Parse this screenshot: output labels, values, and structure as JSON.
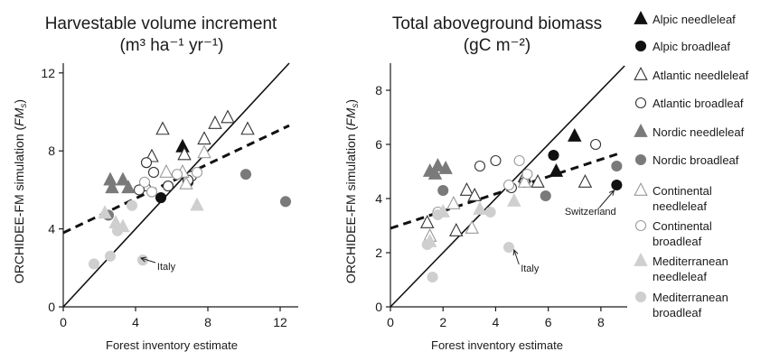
{
  "chart_data": [
    {
      "type": "scatter",
      "title": "Harvestable volume increment",
      "subtitle": "(m³ ha⁻¹ yr⁻¹)",
      "xlabel": "Forest inventory estimate",
      "ylabel_main": "ORCHIDEE-FM simulation (",
      "ylabel_sym": "FM",
      "ylabel_sub": "s",
      "ylabel_end": ")",
      "xlim": [
        0,
        13
      ],
      "ylim": [
        0,
        12.5
      ],
      "x_ticks": [
        "0",
        "4",
        "8",
        "12"
      ],
      "y_ticks": [
        "0",
        "4",
        "8",
        "12"
      ],
      "x_tick_values": [
        0,
        4,
        8,
        12
      ],
      "y_tick_values": [
        0,
        4,
        8,
        12
      ],
      "one_to_one_line": {
        "x": [
          0,
          12.5
        ],
        "y": [
          0,
          12.5
        ]
      },
      "regression_line": {
        "x": [
          0,
          12.5
        ],
        "y": [
          3.8,
          9.3
        ]
      },
      "annotations": [
        {
          "text": "Italy",
          "x": 5.7,
          "y": 1.9,
          "arrow_to": [
            4.3,
            2.5
          ]
        }
      ],
      "series": [
        {
          "name": "Alpic needleleaf",
          "points": [
            [
              6.6,
              8.2
            ]
          ]
        },
        {
          "name": "Alpic broadleaf",
          "points": [
            [
              5.4,
              5.6
            ],
            [
              6.9,
              6.4
            ]
          ]
        },
        {
          "name": "Atlantic needleleaf",
          "points": [
            [
              5.5,
              9.1
            ],
            [
              6.7,
              7.8
            ],
            [
              7.8,
              8.6
            ],
            [
              8.4,
              9.4
            ],
            [
              9.1,
              9.7
            ],
            [
              10.2,
              9.1
            ],
            [
              4.9,
              7.7
            ],
            [
              4.6,
              6.2
            ]
          ]
        },
        {
          "name": "Atlantic broadleaf",
          "points": [
            [
              4.2,
              6.0
            ],
            [
              4.6,
              7.4
            ],
            [
              5.0,
              6.9
            ],
            [
              5.8,
              6.2
            ],
            [
              7.1,
              6.7
            ],
            [
              6.9,
              6.5
            ]
          ]
        },
        {
          "name": "Nordic needleleaf",
          "points": [
            [
              2.6,
              6.5
            ],
            [
              2.7,
              6.1
            ],
            [
              3.3,
              6.5
            ],
            [
              3.6,
              6.1
            ]
          ]
        },
        {
          "name": "Nordic broadleaf",
          "points": [
            [
              2.5,
              4.7
            ],
            [
              10.1,
              6.8
            ],
            [
              12.3,
              5.4
            ]
          ]
        },
        {
          "name": "Continental needleleaf",
          "points": [
            [
              5.7,
              6.9
            ],
            [
              6.6,
              6.9
            ],
            [
              7.8,
              7.9
            ],
            [
              6.8,
              6.3
            ]
          ]
        },
        {
          "name": "Continental broadleaf",
          "points": [
            [
              4.5,
              6.4
            ],
            [
              4.9,
              5.9
            ],
            [
              6.3,
              6.8
            ],
            [
              7.4,
              6.9
            ]
          ]
        },
        {
          "name": "Mediterranean needleleaf",
          "points": [
            [
              2.9,
              4.3
            ],
            [
              3.3,
              4.1
            ],
            [
              7.4,
              5.2
            ],
            [
              2.3,
              4.8
            ]
          ]
        },
        {
          "name": "Mediterranean broadleaf",
          "points": [
            [
              1.7,
              2.2
            ],
            [
              2.6,
              2.6
            ],
            [
              4.4,
              2.4
            ],
            [
              3.0,
              3.9
            ],
            [
              3.8,
              5.2
            ]
          ]
        }
      ]
    },
    {
      "type": "scatter",
      "title": "Total aboveground biomass",
      "subtitle": "(gC m⁻²)",
      "xlabel": "Forest inventory estimate",
      "ylabel_main": "ORCHIDEE-FM simulation (",
      "ylabel_sym": "FM",
      "ylabel_sub": "s",
      "ylabel_end": ")",
      "xlim": [
        0,
        9
      ],
      "ylim": [
        0,
        9
      ],
      "x_ticks": [
        "0",
        "2",
        "4",
        "6",
        "8"
      ],
      "y_ticks": [
        "0",
        "2",
        "4",
        "6",
        "8"
      ],
      "x_tick_values": [
        0,
        2,
        4,
        6,
        8
      ],
      "y_tick_values": [
        0,
        2,
        4,
        6,
        8
      ],
      "one_to_one_line": {
        "x": [
          0,
          8.9
        ],
        "y": [
          0,
          8.9
        ]
      },
      "regression_line": {
        "x": [
          0,
          8.8
        ],
        "y": [
          2.9,
          5.7
        ]
      },
      "annotations": [
        {
          "text": "Italy",
          "x": 5.3,
          "y": 1.3,
          "arrow_to": [
            4.7,
            2.1
          ]
        },
        {
          "text": "Switzerland",
          "x": 7.6,
          "y": 3.4,
          "arrow_to": [
            8.5,
            4.3
          ]
        }
      ],
      "series": [
        {
          "name": "Alpic needleleaf",
          "points": [
            [
              7.0,
              6.3
            ],
            [
              6.3,
              5.0
            ]
          ]
        },
        {
          "name": "Alpic broadleaf",
          "points": [
            [
              6.2,
              5.6
            ],
            [
              8.6,
              4.5
            ]
          ]
        },
        {
          "name": "Atlantic needleleaf",
          "points": [
            [
              1.4,
              3.1
            ],
            [
              2.9,
              4.3
            ],
            [
              3.2,
              4.1
            ],
            [
              5.1,
              4.8
            ],
            [
              5.6,
              4.6
            ],
            [
              7.4,
              4.6
            ],
            [
              2.5,
              2.8
            ]
          ]
        },
        {
          "name": "Atlantic broadleaf",
          "points": [
            [
              3.4,
              5.2
            ],
            [
              4.0,
              5.4
            ],
            [
              4.6,
              4.4
            ],
            [
              5.1,
              4.6
            ],
            [
              7.8,
              6.0
            ]
          ]
        },
        {
          "name": "Nordic needleleaf",
          "points": [
            [
              1.5,
              5.0
            ],
            [
              1.8,
              5.2
            ],
            [
              2.1,
              5.1
            ],
            [
              1.7,
              4.9
            ]
          ]
        },
        {
          "name": "Nordic broadleaf",
          "points": [
            [
              2.0,
              4.3
            ],
            [
              5.9,
              4.1
            ],
            [
              8.6,
              5.2
            ]
          ]
        },
        {
          "name": "Continental needleleaf",
          "points": [
            [
              1.5,
              2.6
            ],
            [
              2.4,
              3.8
            ],
            [
              3.1,
              2.9
            ],
            [
              5.1,
              4.6
            ]
          ]
        },
        {
          "name": "Continental broadleaf",
          "points": [
            [
              4.9,
              5.4
            ],
            [
              5.2,
              4.9
            ],
            [
              1.8,
              3.5
            ],
            [
              4.5,
              4.5
            ]
          ]
        },
        {
          "name": "Mediterranean needleleaf",
          "points": [
            [
              1.5,
              2.4
            ],
            [
              2.0,
              3.5
            ],
            [
              3.4,
              3.6
            ],
            [
              4.7,
              3.9
            ]
          ]
        },
        {
          "name": "Mediterranean broadleaf",
          "points": [
            [
              1.4,
              2.3
            ],
            [
              1.6,
              1.1
            ],
            [
              1.8,
              3.4
            ],
            [
              3.8,
              3.5
            ],
            [
              4.5,
              2.2
            ]
          ]
        }
      ]
    }
  ],
  "legend": [
    {
      "label": "Alpic needleleaf",
      "marker": "triangle",
      "fill": "#111111",
      "stroke": "#111111"
    },
    {
      "label": "Alpic broadleaf",
      "marker": "circle",
      "fill": "#111111",
      "stroke": "#111111"
    },
    {
      "label": "Atlantic needleleaf",
      "marker": "triangle",
      "fill": "#ffffff",
      "stroke": "#333333"
    },
    {
      "label": "Atlantic broadleaf",
      "marker": "circle",
      "fill": "#ffffff",
      "stroke": "#333333"
    },
    {
      "label": "Nordic needleleaf",
      "marker": "triangle",
      "fill": "#7a7a7a",
      "stroke": "#7a7a7a"
    },
    {
      "label": "Nordic broadleaf",
      "marker": "circle",
      "fill": "#7a7a7a",
      "stroke": "#7a7a7a"
    },
    {
      "label": [
        "Continental",
        "needleleaf"
      ],
      "marker": "triangle",
      "fill": "#ffffff",
      "stroke": "#9a9a9a"
    },
    {
      "label": [
        "Continental",
        "broadleaf"
      ],
      "marker": "circle",
      "fill": "#ffffff",
      "stroke": "#9a9a9a"
    },
    {
      "label": [
        "Mediterranean",
        "needleleaf"
      ],
      "marker": "triangle",
      "fill": "#cfcfcf",
      "stroke": "#cfcfcf"
    },
    {
      "label": [
        "Mediterranean",
        "broadleaf"
      ],
      "marker": "circle",
      "fill": "#cfcfcf",
      "stroke": "#cfcfcf"
    }
  ]
}
